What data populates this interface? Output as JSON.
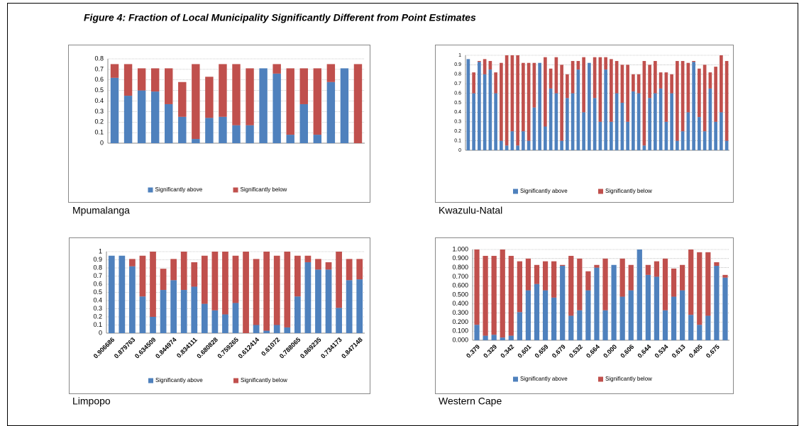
{
  "figure": {
    "title": "Figure 4: Fraction of Local Municipality Significantly Different from Point Estimates"
  },
  "chart_data": [
    {
      "type": "bar",
      "stacked": true,
      "title": "Mpumalanga",
      "categories": [
        null,
        null,
        null,
        null,
        null,
        null,
        null,
        null,
        null,
        null,
        null,
        null,
        null,
        null,
        null,
        null,
        null,
        null,
        null
      ],
      "series": [
        {
          "name": "Significantly above",
          "color": "#4f81bd",
          "values": [
            0.62,
            0.45,
            0.5,
            0.49,
            0.37,
            0.25,
            0.04,
            0.24,
            0.25,
            0.17,
            0.17,
            0.71,
            0.66,
            0.08,
            0.37,
            0.08,
            0.58,
            0.71,
            0
          ]
        },
        {
          "name": "Significantly below",
          "color": "#c0504d",
          "values": [
            0.13,
            0.3,
            0.21,
            0.22,
            0.34,
            0.33,
            0.71,
            0.39,
            0.5,
            0.58,
            0.54,
            0,
            0.09,
            0.63,
            0.34,
            0.63,
            0.17,
            0,
            0.75
          ]
        }
      ],
      "ylim": [
        0,
        0.8
      ],
      "yticks": [
        0,
        0.1,
        0.2,
        0.3,
        0.4,
        0.5,
        0.6,
        0.7,
        0.8
      ],
      "grid": true
    },
    {
      "type": "bar",
      "stacked": true,
      "title": "Kwazulu-Natal",
      "categories": [
        null,
        null,
        null,
        null,
        null,
        null,
        null,
        null,
        null,
        null,
        null,
        null,
        null,
        null,
        null,
        null,
        null,
        null,
        null,
        null,
        null,
        null,
        null,
        null,
        null,
        null,
        null,
        null,
        null,
        null,
        null,
        null,
        null,
        null,
        null,
        null,
        null,
        null,
        null,
        null,
        null,
        null,
        null,
        null,
        null,
        null,
        null,
        null
      ],
      "series": [
        {
          "name": "Significantly above",
          "color": "#4f81bd",
          "values": [
            0.96,
            0.6,
            0.93,
            0.8,
            0.85,
            0.6,
            0.1,
            0.05,
            0.2,
            0.05,
            0.2,
            0.1,
            0.45,
            0.92,
            0.25,
            0.65,
            0.6,
            0.1,
            0.55,
            0.6,
            0.85,
            0.4,
            0.92,
            0.55,
            0.3,
            0.85,
            0.3,
            0.6,
            0.5,
            0.3,
            0.62,
            0.6,
            0.05,
            0.55,
            0.6,
            0.65,
            0.3,
            0.6,
            0.1,
            0.2,
            0.4,
            0.93,
            0.35,
            0.2,
            0.65,
            0.3,
            0.4,
            0.1
          ]
        },
        {
          "name": "Significantly below",
          "color": "#c0504d",
          "values": [
            0,
            0.22,
            0.01,
            0.16,
            0.09,
            0.22,
            0.82,
            0.95,
            0.8,
            0.95,
            0.72,
            0.82,
            0.47,
            0,
            0.73,
            0.21,
            0.38,
            0.8,
            0.25,
            0.34,
            0.09,
            0.58,
            0,
            0.43,
            0.68,
            0.13,
            0.66,
            0.34,
            0.4,
            0.6,
            0.18,
            0.2,
            0.89,
            0.35,
            0.34,
            0.17,
            0.52,
            0.2,
            0.84,
            0.74,
            0.52,
            0.01,
            0.51,
            0.7,
            0.17,
            0.58,
            0.6,
            0.84
          ]
        }
      ],
      "ylim": [
        0,
        1
      ],
      "yticks": [
        0,
        0.1,
        0.2,
        0.3,
        0.4,
        0.5,
        0.6,
        0.7,
        0.8,
        0.9,
        1
      ],
      "grid": true
    },
    {
      "type": "bar",
      "stacked": true,
      "title": "Limpopo",
      "categories": [
        "0.906686",
        null,
        "0.879763",
        null,
        "0.634509",
        null,
        "0.844974",
        null,
        "0.834111",
        null,
        "0.680828",
        null,
        "0.759265",
        null,
        "0.612414",
        null,
        "0.61072",
        null,
        "0.788065",
        null,
        "0.869235",
        null,
        "0.734173",
        null,
        "0.847148"
      ],
      "series": [
        {
          "name": "Significantly above",
          "color": "#4f81bd",
          "values": [
            0.95,
            0.95,
            0.82,
            0.45,
            0.2,
            0.53,
            0.65,
            0.53,
            0.57,
            0.36,
            0.28,
            0.23,
            0.37,
            0,
            0.1,
            0.03,
            0.1,
            0.07,
            0.45,
            0.87,
            0.78,
            0.78,
            0.31,
            0.65,
            0.66
          ]
        },
        {
          "name": "Significantly below",
          "color": "#c0504d",
          "values": [
            0,
            0,
            0.09,
            0.5,
            0.8,
            0.26,
            0.26,
            0.47,
            0.3,
            0.59,
            0.72,
            0.77,
            0.58,
            1,
            0.81,
            0.97,
            0.85,
            0.93,
            0.5,
            0.08,
            0.13,
            0.09,
            0.69,
            0.26,
            0.25
          ]
        }
      ],
      "ylim": [
        0,
        1
      ],
      "yticks": [
        0,
        0.1,
        0.2,
        0.3,
        0.4,
        0.5,
        0.6,
        0.7,
        0.8,
        0.9,
        1
      ],
      "grid": true
    },
    {
      "type": "bar",
      "stacked": true,
      "title": "Western Cape",
      "categories": [
        "0.379",
        null,
        "0.329",
        null,
        "0.342",
        null,
        "0.601",
        null,
        "0.659",
        null,
        "0.679",
        null,
        "0.532",
        null,
        "0.664",
        null,
        "0.000",
        null,
        "0.606",
        null,
        "0.644",
        null,
        "0.534",
        null,
        "0.613",
        null,
        "0.405",
        null,
        "0.675",
        null
      ],
      "series": [
        {
          "name": "Significantly above",
          "color": "#4f81bd",
          "values": [
            0.17,
            0.05,
            0.06,
            0.03,
            0.05,
            0.31,
            0.55,
            0.62,
            0.55,
            0.47,
            0.82,
            0.27,
            0.33,
            0.55,
            0.8,
            0.33,
            0.83,
            0.48,
            0.55,
            1,
            0.72,
            0.7,
            0.33,
            0.48,
            0.55,
            0.28,
            0.17,
            0.27,
            0.82,
            0.69
          ]
        },
        {
          "name": "Significantly below",
          "color": "#c0504d",
          "values": [
            0.83,
            0.88,
            0.87,
            0.97,
            0.88,
            0.56,
            0.35,
            0.21,
            0.32,
            0.4,
            0.01,
            0.66,
            0.57,
            0.21,
            0.03,
            0.57,
            0,
            0.42,
            0.28,
            0,
            0.11,
            0.17,
            0.57,
            0.31,
            0.28,
            0.72,
            0.8,
            0.7,
            0.04,
            0.03
          ]
        }
      ],
      "ylim": [
        0,
        1
      ],
      "yticks": [
        {
          "value": 0,
          "label": "0.000"
        },
        {
          "value": 0.1,
          "label": "0.100"
        },
        {
          "value": 0.2,
          "label": "0.200"
        },
        {
          "value": 0.3,
          "label": "0.300"
        },
        {
          "value": 0.4,
          "label": "0.400"
        },
        {
          "value": 0.5,
          "label": "0.500"
        },
        {
          "value": 0.6,
          "label": "0.600"
        },
        {
          "value": 0.7,
          "label": "0.700"
        },
        {
          "value": 0.8,
          "label": "0.800"
        },
        {
          "value": 0.9,
          "label": "0.900"
        },
        {
          "value": 1,
          "label": "1.000"
        }
      ],
      "grid": true
    }
  ]
}
